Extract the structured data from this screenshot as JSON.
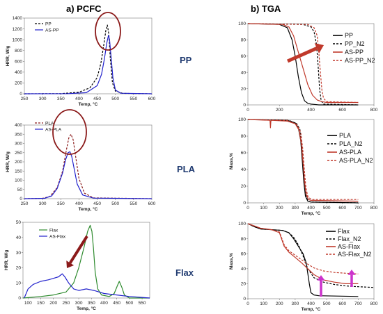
{
  "headings": {
    "left": "a) PCFC",
    "right": "b) TGA",
    "rows": [
      "PP",
      "PLA",
      "Flax"
    ]
  },
  "colors": {
    "dark_red": "#8b1a1a",
    "red": "#c0392b",
    "blue": "#2222cc",
    "green": "#2e8b2e",
    "black": "#000000",
    "magenta": "#cc33cc",
    "ellipse": "#8b1a1a"
  },
  "chart_data": [
    {
      "id": "pcfc_pp",
      "type": "line",
      "grid": false,
      "legend_position": "top-left",
      "xlabel": "Temp, °C",
      "ylabel": "HRR, W/g",
      "xlim": [
        250,
        600
      ],
      "ylim": [
        0,
        1400
      ],
      "xticks": [
        250,
        300,
        350,
        400,
        450,
        500,
        550,
        600
      ],
      "yticks": [
        0,
        200,
        400,
        600,
        800,
        1000,
        1200,
        1400
      ],
      "series": [
        {
          "name": "PP",
          "style": "dashed",
          "color": "#000000",
          "x": [
            250,
            350,
            400,
            430,
            450,
            460,
            468,
            474,
            478,
            482,
            486,
            492,
            500,
            520,
            600
          ],
          "y": [
            0,
            3,
            30,
            110,
            300,
            560,
            900,
            1180,
            1270,
            1100,
            650,
            200,
            50,
            8,
            0
          ]
        },
        {
          "name": "AS-PP",
          "style": "solid",
          "color": "#2222cc",
          "x": [
            250,
            370,
            420,
            450,
            462,
            470,
            476,
            481,
            484,
            488,
            493,
            500,
            515,
            600
          ],
          "y": [
            0,
            2,
            20,
            150,
            360,
            650,
            930,
            1080,
            1000,
            700,
            300,
            70,
            10,
            0
          ]
        }
      ]
    },
    {
      "id": "pcfc_pla",
      "type": "line",
      "grid": false,
      "legend_position": "top-left",
      "xlabel": "Temp, °C",
      "ylabel": "HRR, W/g",
      "xlim": [
        250,
        600
      ],
      "ylim": [
        0,
        400
      ],
      "xticks": [
        250,
        300,
        350,
        400,
        450,
        500,
        550,
        600
      ],
      "yticks": [
        0,
        50,
        100,
        150,
        200,
        250,
        300,
        350,
        400
      ],
      "series": [
        {
          "name": "PLA",
          "style": "dashed",
          "color": "#8b1a1a",
          "x": [
            250,
            300,
            320,
            340,
            355,
            365,
            372,
            378,
            384,
            390,
            400,
            415,
            440,
            600
          ],
          "y": [
            0,
            2,
            12,
            60,
            150,
            260,
            330,
            350,
            320,
            240,
            110,
            30,
            4,
            0
          ]
        },
        {
          "name": "AS-PLA",
          "style": "solid",
          "color": "#2222cc",
          "x": [
            250,
            305,
            325,
            340,
            355,
            363,
            370,
            375,
            380,
            386,
            395,
            410,
            440,
            600
          ],
          "y": [
            0,
            2,
            15,
            55,
            140,
            210,
            250,
            255,
            230,
            170,
            80,
            20,
            3,
            0
          ]
        }
      ]
    },
    {
      "id": "pcfc_flax",
      "type": "line",
      "grid": false,
      "legend_position": "top-left",
      "xlabel": "Temp, °C",
      "ylabel": "HRR, W/g",
      "xlim": [
        80,
        580
      ],
      "ylim": [
        0,
        50
      ],
      "xticks": [
        100,
        150,
        200,
        250,
        300,
        350,
        400,
        450,
        500,
        550
      ],
      "yticks": [
        0,
        10,
        20,
        30,
        40,
        50
      ],
      "series": [
        {
          "name": "Flax",
          "style": "solid",
          "color": "#2e8b2e",
          "x": [
            80,
            150,
            200,
            250,
            280,
            300,
            320,
            335,
            345,
            352,
            358,
            365,
            375,
            390,
            420,
            440,
            452,
            460,
            470,
            480,
            500,
            580
          ],
          "y": [
            0,
            1,
            2,
            4,
            10,
            20,
            33,
            44,
            48,
            44,
            33,
            17,
            6,
            2,
            1,
            3,
            8,
            11,
            7,
            2,
            0,
            0
          ]
        },
        {
          "name": "AS-Flax",
          "style": "solid",
          "color": "#2222cc",
          "x": [
            85,
            100,
            120,
            150,
            180,
            200,
            220,
            235,
            245,
            260,
            280,
            300,
            330,
            360,
            400,
            450,
            500,
            540,
            580
          ],
          "y": [
            0,
            6,
            9,
            11,
            12,
            13,
            14,
            16,
            14,
            10,
            6,
            5,
            6,
            5,
            3,
            2,
            1,
            0.5,
            0
          ]
        }
      ]
    },
    {
      "id": "tga_pp",
      "type": "line",
      "grid": false,
      "legend_position": "right",
      "xlabel": "",
      "ylabel": "",
      "xlim": [
        0,
        800
      ],
      "ylim": [
        0,
        100
      ],
      "xticks": [
        0,
        200,
        400,
        600,
        800
      ],
      "yticks": [
        0,
        20,
        40,
        60,
        80,
        100
      ],
      "series": [
        {
          "name": "PP",
          "style": "solid",
          "color": "#000000",
          "x": [
            0,
            200,
            250,
            280,
            300,
            320,
            340,
            360,
            380,
            400,
            450,
            700
          ],
          "y": [
            100,
            99,
            95,
            80,
            60,
            35,
            15,
            5,
            2,
            1,
            0,
            0
          ]
        },
        {
          "name": "PP_N2",
          "style": "dashed",
          "color": "#000000",
          "x": [
            0,
            350,
            400,
            420,
            435,
            445,
            455,
            465,
            480,
            700
          ],
          "y": [
            100,
            99,
            96,
            90,
            75,
            50,
            20,
            5,
            1,
            0
          ]
        },
        {
          "name": "AS-PP",
          "style": "solid",
          "color": "#c0392b",
          "x": [
            0,
            220,
            260,
            290,
            320,
            350,
            380,
            410,
            440,
            470,
            500,
            700
          ],
          "y": [
            100,
            99,
            96,
            85,
            65,
            45,
            25,
            12,
            6,
            4,
            3,
            3
          ]
        },
        {
          "name": "AS-PP_N2",
          "style": "dashed",
          "color": "#c0392b",
          "x": [
            0,
            380,
            420,
            440,
            450,
            460,
            470,
            480,
            500,
            700
          ],
          "y": [
            100,
            99,
            95,
            85,
            65,
            40,
            18,
            8,
            4,
            3
          ]
        }
      ]
    },
    {
      "id": "tga_pla",
      "type": "line",
      "grid": false,
      "legend_position": "right",
      "xlabel": "Temp, °C",
      "ylabel": "Mass,%",
      "xlim": [
        0,
        800
      ],
      "ylim": [
        0,
        100
      ],
      "xticks": [
        0,
        100,
        200,
        300,
        400,
        500,
        600,
        700,
        800
      ],
      "yticks": [
        0,
        20,
        40,
        60,
        80,
        100
      ],
      "series": [
        {
          "name": "PLA",
          "style": "solid",
          "color": "#000000",
          "x": [
            0,
            250,
            300,
            320,
            335,
            345,
            355,
            365,
            380,
            400,
            700
          ],
          "y": [
            100,
            99,
            96,
            90,
            75,
            50,
            25,
            8,
            2,
            1,
            0
          ]
        },
        {
          "name": "PLA_N2",
          "style": "dashed",
          "color": "#000000",
          "x": [
            0,
            260,
            310,
            330,
            342,
            352,
            362,
            372,
            385,
            400,
            700
          ],
          "y": [
            100,
            99,
            95,
            88,
            70,
            45,
            20,
            6,
            2,
            1,
            0
          ]
        },
        {
          "name": "AS-PLA",
          "style": "solid",
          "color": "#c0392b",
          "x": [
            0,
            140,
            143,
            146,
            150,
            250,
            300,
            325,
            340,
            350,
            360,
            370,
            385,
            400,
            700
          ],
          "y": [
            100,
            99,
            90,
            98,
            99,
            98,
            95,
            87,
            70,
            48,
            25,
            10,
            4,
            3,
            2
          ]
        },
        {
          "name": "AS-PLA_N2",
          "style": "dashed",
          "color": "#c0392b",
          "x": [
            0,
            250,
            310,
            335,
            348,
            358,
            368,
            380,
            395,
            410,
            700
          ],
          "y": [
            100,
            99,
            94,
            85,
            65,
            40,
            18,
            8,
            5,
            4,
            4
          ]
        }
      ]
    },
    {
      "id": "tga_flax",
      "type": "line",
      "grid": false,
      "legend_position": "right",
      "xlabel": "Temp, °C",
      "ylabel": "Mass,%",
      "xlim": [
        0,
        800
      ],
      "ylim": [
        0,
        100
      ],
      "xticks": [
        0,
        100,
        200,
        300,
        400,
        500,
        600,
        700,
        800
      ],
      "yticks": [
        0,
        20,
        40,
        60,
        80,
        100
      ],
      "series": [
        {
          "name": "Flax",
          "style": "solid",
          "color": "#000000",
          "x": [
            0,
            40,
            80,
            150,
            220,
            260,
            290,
            320,
            350,
            370,
            390,
            400,
            420,
            450,
            700
          ],
          "y": [
            100,
            96,
            93,
            92,
            91,
            88,
            80,
            70,
            60,
            48,
            20,
            8,
            5,
            4,
            3
          ]
        },
        {
          "name": "Flax_N2",
          "style": "dashed",
          "color": "#000000",
          "x": [
            0,
            40,
            80,
            150,
            220,
            260,
            290,
            320,
            350,
            380,
            420,
            480,
            550,
            620,
            700,
            800
          ],
          "y": [
            100,
            96,
            93,
            92,
            91,
            88,
            82,
            72,
            57,
            40,
            28,
            22,
            19,
            17,
            16,
            15
          ]
        },
        {
          "name": "AS-Flax",
          "style": "solid",
          "color": "#c0392b",
          "x": [
            0,
            40,
            80,
            150,
            200,
            230,
            260,
            300,
            340,
            380,
            420,
            480,
            550,
            620,
            700
          ],
          "y": [
            100,
            97,
            94,
            92,
            88,
            70,
            62,
            55,
            48,
            40,
            32,
            25,
            22,
            20,
            20
          ]
        },
        {
          "name": "AS-Flax_N2",
          "style": "dashed",
          "color": "#c0392b",
          "x": [
            0,
            40,
            80,
            150,
            200,
            230,
            260,
            300,
            340,
            380,
            420,
            480,
            550,
            620,
            700
          ],
          "y": [
            100,
            97,
            94,
            92,
            89,
            72,
            64,
            58,
            52,
            46,
            41,
            37,
            35,
            34,
            33
          ]
        }
      ]
    }
  ]
}
